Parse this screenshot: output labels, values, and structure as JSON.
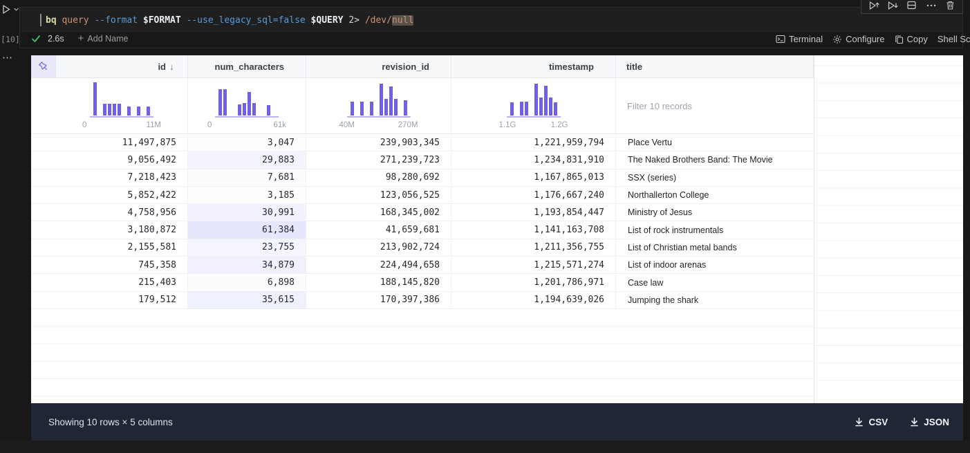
{
  "cell": {
    "execution_count": "[10]",
    "gutter_more": "⋯",
    "code_tokens": [
      {
        "text": "bq",
        "style": "cmd"
      },
      {
        "text": " ",
        "style": "plain"
      },
      {
        "text": "query",
        "style": "arg"
      },
      {
        "text": " ",
        "style": "plain"
      },
      {
        "text": "--format",
        "style": "flag"
      },
      {
        "text": " ",
        "style": "plain"
      },
      {
        "text": "$FORMAT",
        "style": "var"
      },
      {
        "text": " ",
        "style": "plain"
      },
      {
        "text": "--use_legacy_sql=false",
        "style": "flag"
      },
      {
        "text": " ",
        "style": "plain"
      },
      {
        "text": "$QUERY",
        "style": "var"
      },
      {
        "text": " ",
        "style": "plain"
      },
      {
        "text": "2>",
        "style": "plain"
      },
      {
        "text": " ",
        "style": "plain"
      },
      {
        "text": "/dev/",
        "style": "arg"
      },
      {
        "text": "null",
        "style": "arg-highlight"
      }
    ],
    "status": {
      "duration": "2.6s",
      "add_name_label": "Add Name",
      "plus": "+"
    },
    "toolbar_icons": [
      "execute-above-icon",
      "execute-below-icon",
      "split-cell-icon",
      "more-actions-icon",
      "delete-cell-icon"
    ],
    "lang_bar": {
      "terminal": "Terminal",
      "configure": "Configure",
      "copy": "Copy",
      "language": "Shell Script"
    }
  },
  "table": {
    "accent_color": "#6e61e6",
    "highlight_color": "#6366f1",
    "columns": [
      {
        "name": "id",
        "type": "number",
        "sort": "desc",
        "histogram": {
          "min_label": "0",
          "max_label": "11M",
          "bars": [
            1,
            0,
            0.36,
            0.36,
            0.36,
            0.36,
            0,
            0.28,
            0,
            0.28,
            0,
            0.28
          ]
        }
      },
      {
        "name": "num_characters",
        "type": "number",
        "histogram": {
          "min_label": "0",
          "max_label": "61k",
          "bars": [
            0.8,
            0.8,
            0,
            0,
            0.34,
            0.38,
            0.7,
            0.38,
            0,
            0,
            0.32,
            0
          ]
        }
      },
      {
        "name": "revision_id",
        "type": "number",
        "histogram": {
          "min_label": "40M",
          "max_label": "270M",
          "bars": [
            0.42,
            0,
            0.42,
            0,
            0.42,
            0,
            0.95,
            0.5,
            0.88,
            0.5,
            0,
            0.45
          ]
        }
      },
      {
        "name": "timestamp",
        "type": "number",
        "histogram": {
          "min_label": "1.1G",
          "max_label": "1.2G",
          "bars": [
            0.4,
            0,
            0.42,
            0.42,
            0,
            0.95,
            0.55,
            0.9,
            0.55,
            0.4
          ]
        }
      },
      {
        "name": "title",
        "type": "text",
        "filter_placeholder": "Filter 10 records"
      }
    ],
    "num_characters_max": 61384,
    "rows": [
      {
        "id": "11,497,875",
        "num_characters": "3,047",
        "num_value": 3047,
        "revision_id": "239,903,345",
        "timestamp": "1,221,959,794",
        "title": "Place Vertu"
      },
      {
        "id": "9,056,492",
        "num_characters": "29,883",
        "num_value": 29883,
        "revision_id": "271,239,723",
        "timestamp": "1,234,831,910",
        "title": "The Naked Brothers Band: The Movie"
      },
      {
        "id": "7,218,423",
        "num_characters": "7,681",
        "num_value": 7681,
        "revision_id": "98,280,692",
        "timestamp": "1,167,865,013",
        "title": "SSX (series)"
      },
      {
        "id": "5,852,422",
        "num_characters": "3,185",
        "num_value": 3185,
        "revision_id": "123,056,525",
        "timestamp": "1,176,667,240",
        "title": "Northallerton College"
      },
      {
        "id": "4,758,956",
        "num_characters": "30,991",
        "num_value": 30991,
        "revision_id": "168,345,002",
        "timestamp": "1,193,854,447",
        "title": "Ministry of Jesus"
      },
      {
        "id": "3,180,872",
        "num_characters": "61,384",
        "num_value": 61384,
        "revision_id": "41,659,681",
        "timestamp": "1,141,163,708",
        "title": "List of rock instrumentals"
      },
      {
        "id": "2,155,581",
        "num_characters": "23,755",
        "num_value": 23755,
        "revision_id": "213,902,724",
        "timestamp": "1,211,356,755",
        "title": "List of Christian metal bands"
      },
      {
        "id": "745,358",
        "num_characters": "34,879",
        "num_value": 34879,
        "revision_id": "224,494,658",
        "timestamp": "1,215,571,274",
        "title": "List of indoor arenas"
      },
      {
        "id": "215,403",
        "num_characters": "6,898",
        "num_value": 6898,
        "revision_id": "188,145,820",
        "timestamp": "1,201,786,971",
        "title": "Case law"
      },
      {
        "id": "179,512",
        "num_characters": "35,615",
        "num_value": 35615,
        "revision_id": "170,397,386",
        "timestamp": "1,194,639,026",
        "title": "Jumping the shark"
      }
    ]
  },
  "footer": {
    "status": "Showing 10 rows × 5 columns",
    "csv_label": "CSV",
    "json_label": "JSON"
  }
}
